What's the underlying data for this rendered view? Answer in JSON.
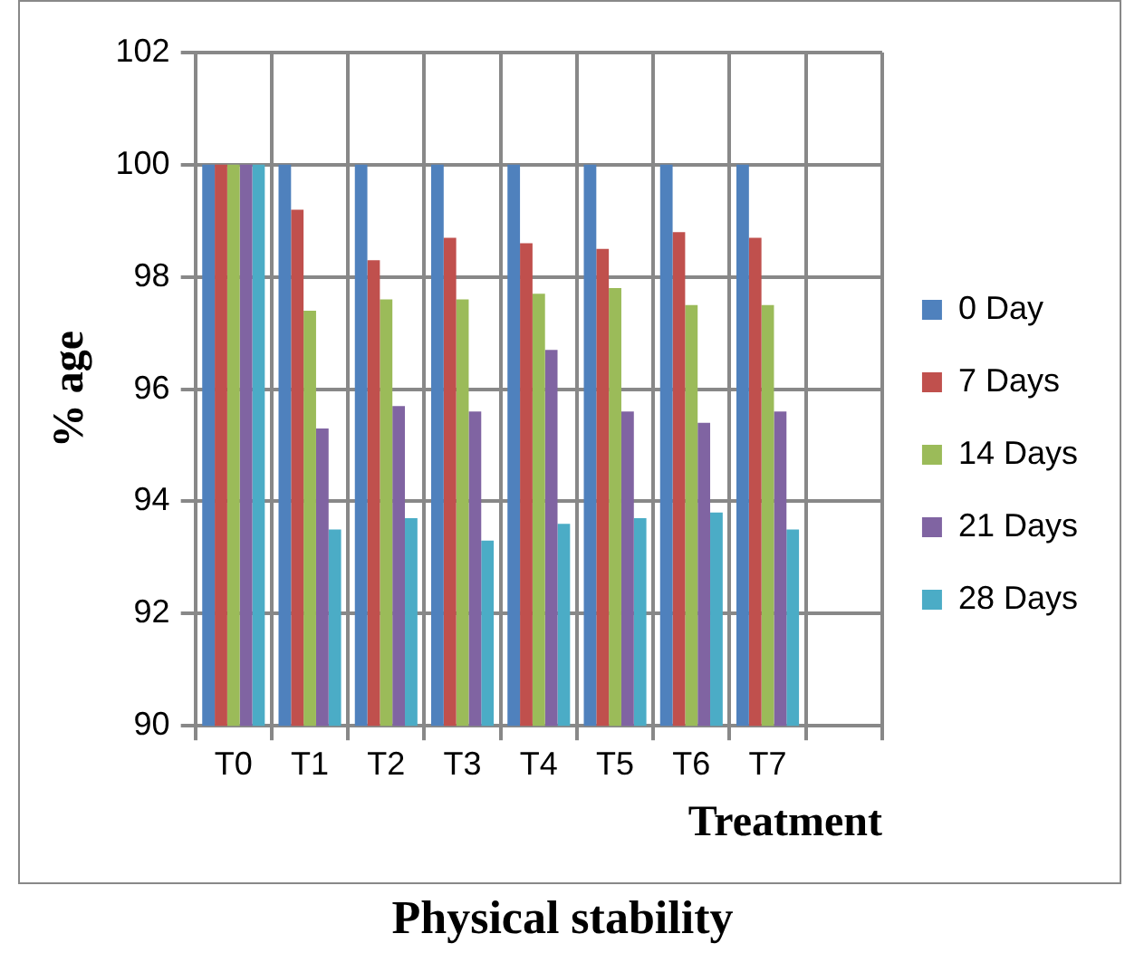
{
  "chart_data": {
    "type": "bar",
    "title": "Physical stability",
    "xlabel": "Treatment",
    "ylabel": "% age",
    "categories": [
      "T0",
      "T1",
      "T2",
      "T3",
      "T4",
      "T5",
      "T6",
      "T7",
      null
    ],
    "series": [
      {
        "name": "0 Day",
        "color": "#4f81bd",
        "values": [
          100,
          100,
          100,
          100,
          100,
          100,
          100,
          100,
          null
        ]
      },
      {
        "name": "7 Days",
        "color": "#c0504d",
        "values": [
          100,
          99.2,
          98.3,
          98.7,
          98.6,
          98.5,
          98.8,
          98.7,
          null
        ]
      },
      {
        "name": "14 Days",
        "color": "#9bbb59",
        "values": [
          100,
          97.4,
          97.6,
          97.6,
          97.7,
          97.8,
          97.5,
          97.5,
          null
        ]
      },
      {
        "name": "21 Days",
        "color": "#8064a2",
        "values": [
          100,
          95.3,
          95.7,
          95.6,
          96.7,
          95.6,
          95.4,
          95.6,
          null
        ]
      },
      {
        "name": "28 Days",
        "color": "#4bacc6",
        "values": [
          100,
          93.5,
          93.7,
          93.3,
          93.6,
          93.7,
          93.8,
          93.5,
          null
        ]
      }
    ],
    "ylim": [
      90,
      102
    ],
    "yticks": [
      90,
      92,
      94,
      96,
      98,
      100,
      102
    ],
    "grid": true,
    "legend": "right"
  }
}
